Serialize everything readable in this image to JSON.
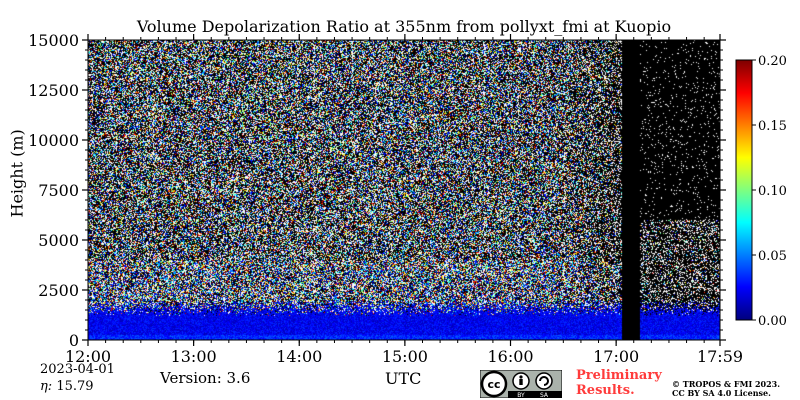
{
  "chart_data": {
    "type": "heatmap",
    "title": "Volume Depolarization Ratio at 355nm from pollyxt_fmi at Kuopio",
    "ylabel": "Height (m)",
    "xlabel": "UTC",
    "x_tick_labels": [
      "12:00",
      "13:00",
      "14:00",
      "15:00",
      "16:00",
      "17:00",
      "17:59"
    ],
    "x_ticks_hours": [
      12.0,
      13.0,
      14.0,
      15.0,
      16.0,
      17.0,
      17.9833
    ],
    "xlim_hours": [
      12.0,
      17.9833
    ],
    "y_ticks": [
      0,
      2500,
      5000,
      7500,
      10000,
      12500,
      15000
    ],
    "y_tick_labels": [
      "0",
      "2500",
      "5000",
      "7500",
      "10000",
      "12500",
      "15000"
    ],
    "ylim": [
      0,
      15000
    ],
    "colorbar": {
      "ticks": [
        0.0,
        0.05,
        0.1,
        0.15,
        0.2
      ],
      "tick_labels": [
        "0.00",
        "0.05",
        "0.10",
        "0.15",
        "0.20"
      ],
      "range": [
        0.0,
        0.2
      ],
      "colormap": "jet"
    },
    "missing_data_periods_hours": [
      [
        17.05,
        17.22
      ]
    ],
    "grid": false
  },
  "footer": {
    "date": "2023-04-01",
    "eta_symbol": "η:",
    "eta_value": "15.79",
    "version": "Version: 3.6",
    "preliminary_line1": "Preliminary",
    "preliminary_line2": "Results.",
    "copyright_line1": "© TROPOS & FMI 2023.",
    "copyright_line2": "CC BY SA 4.0 License.",
    "license_badge_text1": "BY",
    "license_badge_text2": "SA"
  },
  "colors": {
    "missing": "#000000",
    "noise_white": "#ffffff",
    "accent_red": "#ff3b3b"
  }
}
